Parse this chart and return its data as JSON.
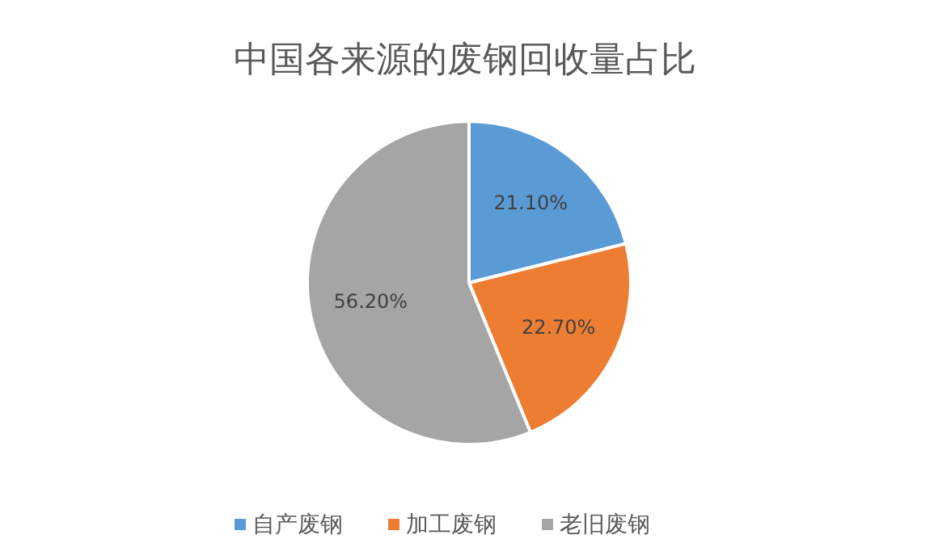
{
  "chart_data": {
    "type": "pie",
    "title": "中国各来源的废钢回收量占比",
    "categories": [
      "自产废钢",
      "加工废钢",
      "老旧废钢"
    ],
    "values": [
      21.1,
      22.7,
      56.2
    ],
    "value_labels": [
      "21.10%",
      "22.70%",
      "56.20%"
    ],
    "colors": [
      "#5b9bd5",
      "#ed7d31",
      "#a5a5a5"
    ],
    "legend": "bottom"
  }
}
